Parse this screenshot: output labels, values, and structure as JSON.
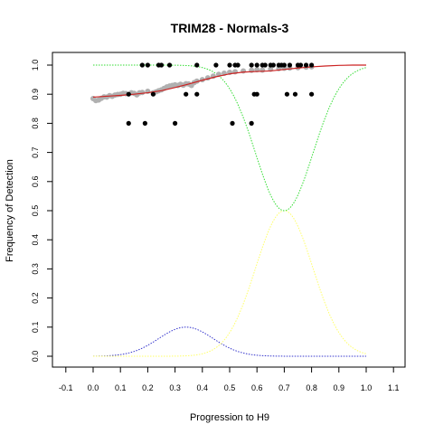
{
  "chart_data": {
    "type": "scatter",
    "title": "TRIM28 - Normals-3",
    "xlabel": "Progression to H9",
    "ylabel": "Frequency of Detection",
    "xlim": [
      -0.1,
      1.1
    ],
    "ylim": [
      0.0,
      1.0
    ],
    "xticks": [
      "-0.1",
      "0.0",
      "0.1",
      "0.2",
      "0.3",
      "0.4",
      "0.5",
      "0.6",
      "0.7",
      "0.8",
      "0.9",
      "1.0",
      "1.1"
    ],
    "yticks": [
      "0.0",
      "0.1",
      "0.2",
      "0.3",
      "0.4",
      "0.5",
      "0.6",
      "0.7",
      "0.8",
      "0.9",
      "1.0"
    ],
    "grid": false,
    "colors": {
      "observed": "#000000",
      "smoothed_points": "#b0b0b0",
      "fit_line": "#cc2222",
      "green_curve": "#33dd33",
      "yellow_curve": "#ffff66",
      "blue_curve": "#3333cc"
    },
    "observed_points": [
      [
        0.13,
        0.9
      ],
      [
        0.13,
        0.8
      ],
      [
        0.18,
        1.0
      ],
      [
        0.19,
        0.8
      ],
      [
        0.2,
        1.0
      ],
      [
        0.22,
        0.9
      ],
      [
        0.24,
        1.0
      ],
      [
        0.25,
        1.0
      ],
      [
        0.28,
        1.0
      ],
      [
        0.3,
        0.8
      ],
      [
        0.34,
        0.9
      ],
      [
        0.38,
        1.0
      ],
      [
        0.38,
        0.9
      ],
      [
        0.45,
        1.0
      ],
      [
        0.5,
        1.0
      ],
      [
        0.51,
        0.8
      ],
      [
        0.52,
        1.0
      ],
      [
        0.53,
        1.0
      ],
      [
        0.58,
        0.8
      ],
      [
        0.58,
        1.0
      ],
      [
        0.59,
        0.9
      ],
      [
        0.6,
        0.9
      ],
      [
        0.6,
        1.0
      ],
      [
        0.62,
        1.0
      ],
      [
        0.63,
        1.0
      ],
      [
        0.65,
        1.0
      ],
      [
        0.66,
        1.0
      ],
      [
        0.68,
        1.0
      ],
      [
        0.69,
        1.0
      ],
      [
        0.7,
        1.0
      ],
      [
        0.71,
        0.9
      ],
      [
        0.72,
        1.0
      ],
      [
        0.74,
        0.9
      ],
      [
        0.75,
        1.0
      ],
      [
        0.76,
        1.0
      ],
      [
        0.78,
        1.0
      ],
      [
        0.8,
        1.0
      ],
      [
        0.8,
        0.9
      ]
    ],
    "smoothed_points": [
      [
        0.0,
        0.885
      ],
      [
        0.01,
        0.878
      ],
      [
        0.02,
        0.88
      ],
      [
        0.03,
        0.886
      ],
      [
        0.04,
        0.891
      ],
      [
        0.05,
        0.89
      ],
      [
        0.06,
        0.895
      ],
      [
        0.07,
        0.893
      ],
      [
        0.08,
        0.897
      ],
      [
        0.09,
        0.899
      ],
      [
        0.1,
        0.9
      ],
      [
        0.11,
        0.903
      ],
      [
        0.12,
        0.902
      ],
      [
        0.14,
        0.905
      ],
      [
        0.15,
        0.903
      ],
      [
        0.16,
        0.898
      ],
      [
        0.17,
        0.905
      ],
      [
        0.18,
        0.906
      ],
      [
        0.2,
        0.91
      ],
      [
        0.22,
        0.905
      ],
      [
        0.23,
        0.908
      ],
      [
        0.24,
        0.912
      ],
      [
        0.25,
        0.915
      ],
      [
        0.26,
        0.92
      ],
      [
        0.27,
        0.925
      ],
      [
        0.28,
        0.928
      ],
      [
        0.29,
        0.93
      ],
      [
        0.3,
        0.932
      ],
      [
        0.31,
        0.93
      ],
      [
        0.32,
        0.934
      ],
      [
        0.33,
        0.931
      ],
      [
        0.34,
        0.936
      ],
      [
        0.35,
        0.935
      ],
      [
        0.36,
        0.93
      ],
      [
        0.37,
        0.94
      ],
      [
        0.38,
        0.945
      ],
      [
        0.4,
        0.95
      ],
      [
        0.42,
        0.956
      ],
      [
        0.44,
        0.962
      ],
      [
        0.46,
        0.968
      ],
      [
        0.48,
        0.972
      ],
      [
        0.5,
        0.975
      ],
      [
        0.52,
        0.977
      ],
      [
        0.55,
        0.98
      ],
      [
        0.58,
        0.982
      ],
      [
        0.6,
        0.984
      ],
      [
        0.62,
        0.983
      ],
      [
        0.65,
        0.986
      ],
      [
        0.68,
        0.988
      ],
      [
        0.7,
        0.989
      ],
      [
        0.72,
        0.99
      ],
      [
        0.75,
        0.991
      ],
      [
        0.78,
        0.993
      ],
      [
        0.8,
        0.994
      ]
    ],
    "fit_line": [
      [
        0.0,
        0.89
      ],
      [
        0.05,
        0.893
      ],
      [
        0.1,
        0.896
      ],
      [
        0.15,
        0.9
      ],
      [
        0.2,
        0.905
      ],
      [
        0.25,
        0.912
      ],
      [
        0.3,
        0.923
      ],
      [
        0.35,
        0.935
      ],
      [
        0.4,
        0.948
      ],
      [
        0.45,
        0.96
      ],
      [
        0.5,
        0.97
      ],
      [
        0.55,
        0.976
      ],
      [
        0.6,
        0.978
      ],
      [
        0.65,
        0.98
      ],
      [
        0.7,
        0.985
      ],
      [
        0.75,
        0.99
      ],
      [
        0.8,
        0.994
      ],
      [
        0.85,
        0.997
      ],
      [
        0.9,
        0.999
      ],
      [
        0.95,
        1.0
      ],
      [
        1.0,
        1.0
      ]
    ],
    "green_curve": {
      "baseline": 1.0,
      "dip_depth": 0.5,
      "center": 0.7,
      "sigma": 0.105,
      "range": [
        0.0,
        1.0
      ]
    },
    "yellow_curve": {
      "peak": 0.5,
      "center": 0.7,
      "sigma": 0.105,
      "range": [
        0.0,
        1.0
      ]
    },
    "blue_curve": {
      "peak": 0.1,
      "center": 0.34,
      "sigma": 0.1,
      "range": [
        0.0,
        1.0
      ]
    }
  }
}
